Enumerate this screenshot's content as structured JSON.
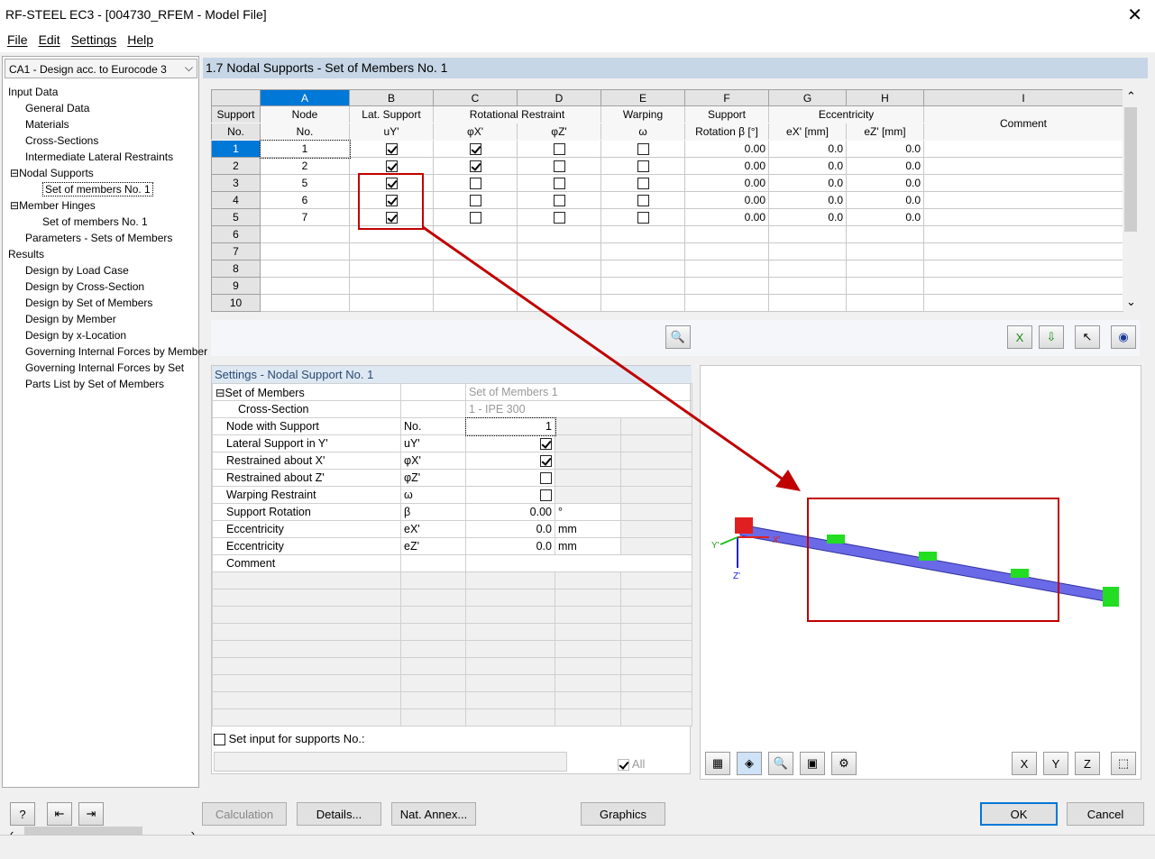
{
  "window": {
    "title": "RF-STEEL EC3 - [004730_RFEM - Model File]"
  },
  "menu": [
    "File",
    "Edit",
    "Settings",
    "Help"
  ],
  "case_select": "CA1 - Design acc. to Eurocode 3",
  "tree": [
    {
      "label": "Input Data",
      "level": 0
    },
    {
      "label": "General Data",
      "level": 1
    },
    {
      "label": "Materials",
      "level": 1
    },
    {
      "label": "Cross-Sections",
      "level": 1
    },
    {
      "label": "Intermediate Lateral Restraints",
      "level": 1
    },
    {
      "label": "Nodal Supports",
      "level": 1,
      "expander": "⊟"
    },
    {
      "label": "Set of members No. 1",
      "level": 2,
      "selected": true
    },
    {
      "label": "Member Hinges",
      "level": 1,
      "expander": "⊟"
    },
    {
      "label": "Set of members No. 1",
      "level": 2
    },
    {
      "label": "Parameters - Sets of Members",
      "level": 1
    },
    {
      "label": "Results",
      "level": 0
    },
    {
      "label": "Design by Load Case",
      "level": 1
    },
    {
      "label": "Design by Cross-Section",
      "level": 1
    },
    {
      "label": "Design by Set of Members",
      "level": 1
    },
    {
      "label": "Design by Member",
      "level": 1
    },
    {
      "label": "Design by x-Location",
      "level": 1
    },
    {
      "label": "Governing Internal Forces by Member",
      "level": 1
    },
    {
      "label": "Governing Internal Forces by Set",
      "level": 1
    },
    {
      "label": "Parts List by Set of Members",
      "level": 1
    }
  ],
  "header": {
    "title": "1.7 Nodal Supports - Set of Members No. 1"
  },
  "table": {
    "letters": [
      "A",
      "B",
      "C",
      "D",
      "E",
      "F",
      "G",
      "H",
      "I"
    ],
    "hdr_support": "Support",
    "hdr_no": "No.",
    "hdr_node": "Node",
    "hdr_node_no": "No.",
    "hdr_lat": "Lat. Support",
    "hdr_uy": "uY'",
    "hdr_rot": "Rotational Restraint",
    "hdr_phix": "φX'",
    "hdr_phiz": "φZ'",
    "hdr_warp": "Warping",
    "hdr_omega": "ω",
    "hdr_sup": "Support",
    "hdr_beta": "Rotation β [°]",
    "hdr_ecc": "Eccentricity",
    "hdr_ex": "eX' [mm]",
    "hdr_ez": "eZ' [mm]",
    "hdr_comment": "Comment",
    "rows": [
      {
        "no": "1",
        "node": "1",
        "uy": true,
        "phix": true,
        "phiz": false,
        "omega": false,
        "beta": "0.00",
        "ex": "0.0",
        "ez": "0.0",
        "comment": ""
      },
      {
        "no": "2",
        "node": "2",
        "uy": true,
        "phix": true,
        "phiz": false,
        "omega": false,
        "beta": "0.00",
        "ex": "0.0",
        "ez": "0.0",
        "comment": ""
      },
      {
        "no": "3",
        "node": "5",
        "uy": true,
        "phix": false,
        "phiz": false,
        "omega": false,
        "beta": "0.00",
        "ex": "0.0",
        "ez": "0.0",
        "comment": ""
      },
      {
        "no": "4",
        "node": "6",
        "uy": true,
        "phix": false,
        "phiz": false,
        "omega": false,
        "beta": "0.00",
        "ex": "0.0",
        "ez": "0.0",
        "comment": ""
      },
      {
        "no": "5",
        "node": "7",
        "uy": true,
        "phix": false,
        "phiz": false,
        "omega": false,
        "beta": "0.00",
        "ex": "0.0",
        "ez": "0.0",
        "comment": ""
      },
      {
        "no": "6"
      },
      {
        "no": "7"
      },
      {
        "no": "8"
      },
      {
        "no": "9"
      },
      {
        "no": "10"
      }
    ]
  },
  "settings": {
    "title": "Settings - Nodal Support No. 1",
    "set_of_members": "Set of Members",
    "set_value": "Set of Members 1",
    "cross_section": "Cross-Section",
    "cs_value": "1 - IPE 300",
    "rows": [
      {
        "label": "Node with Support",
        "sym": "No.",
        "value": "1",
        "unit": ""
      },
      {
        "label": "Lateral Support in Y'",
        "sym": "uY'",
        "check": true,
        "unit": ""
      },
      {
        "label": "Restrained about X'",
        "sym": "φX'",
        "check": true,
        "unit": ""
      },
      {
        "label": "Restrained about Z'",
        "sym": "φZ'",
        "check": false,
        "unit": ""
      },
      {
        "label": "Warping Restraint",
        "sym": "ω",
        "check": false,
        "unit": ""
      },
      {
        "label": "Support Rotation",
        "sym": "β",
        "value": "0.00",
        "unit": "°"
      },
      {
        "label": "Eccentricity",
        "sym": "eX'",
        "value": "0.0",
        "unit": "mm"
      },
      {
        "label": "Eccentricity",
        "sym": "eZ'",
        "value": "0.0",
        "unit": "mm"
      },
      {
        "label": "Comment",
        "sym": "",
        "value": "",
        "unit": ""
      }
    ],
    "set_input_label": "Set input for supports No.:",
    "all_label": "All"
  },
  "graphic": {
    "axis_x": "X'",
    "axis_y": "Y'",
    "axis_z": "Z'"
  },
  "buttons": {
    "calculation": "Calculation",
    "details": "Details...",
    "nat_annex": "Nat. Annex...",
    "graphics": "Graphics",
    "ok": "OK",
    "cancel": "Cancel"
  },
  "colors": {
    "header_bg": "#c6d6e6",
    "selection": "#0078d7",
    "highlight": "#c00000",
    "beam": "#6060e0",
    "support_green": "#20e020",
    "support_red": "#e02020"
  }
}
